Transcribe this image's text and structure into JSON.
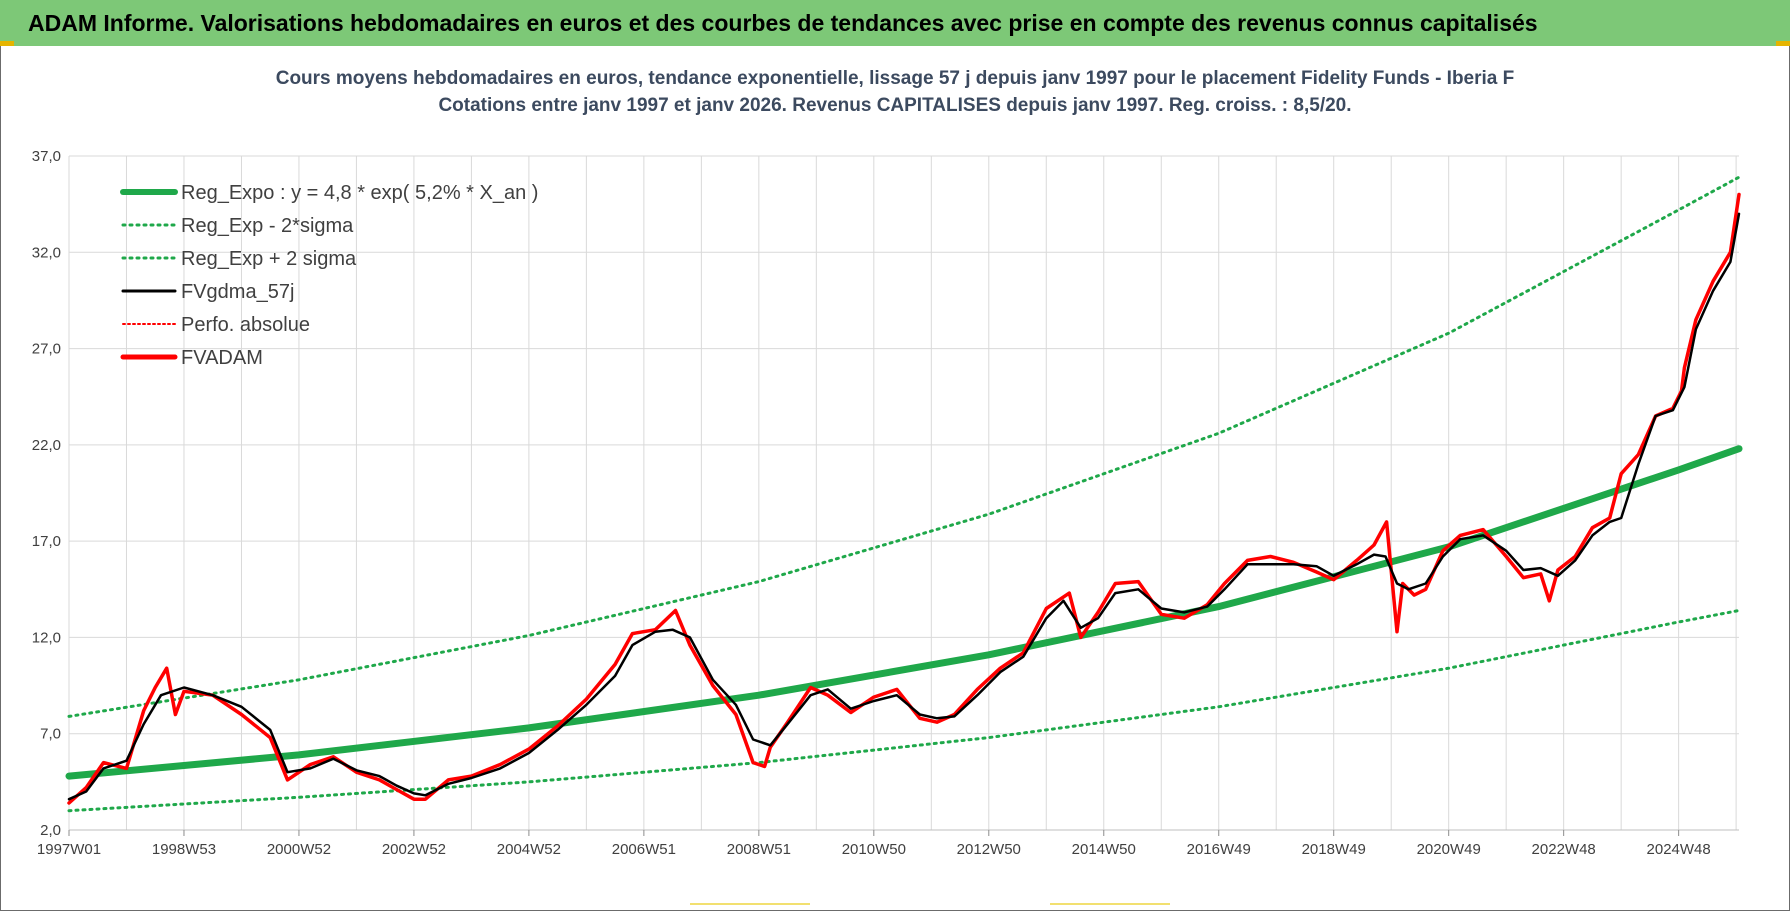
{
  "header": {
    "title": "ADAM Informe. Valorisations hebdomadaires en euros et des courbes de tendances avec prise en compte des revenus connus capitalisés"
  },
  "colors": {
    "banner_bg": "#7dc877",
    "green_series": "#1fa84a",
    "black_series": "#000000",
    "red_series": "#ff0000",
    "grid": "#d9d9d9",
    "title_text": "#3c4a5f"
  },
  "chart_data": {
    "type": "line",
    "title": "Cours moyens hebdomadaires en euros, tendance exponentielle, lissage 57 j depuis janv 1997  pour le  placement Fidelity Funds - Iberia F",
    "subtitle": "Cotations entre janv 1997 et janv 2026. Revenus CAPITALISES depuis janv 1997. Reg. croiss. : 8,5/20.",
    "xlabel": "",
    "ylabel": "",
    "x_range": [
      1997.0,
      2026.05
    ],
    "ylim": [
      2.0,
      37.0
    ],
    "y_ticks": [
      "2,0",
      "7,0",
      "12,0",
      "17,0",
      "22,0",
      "27,0",
      "32,0",
      "37,0"
    ],
    "x_tick_labels": [
      {
        "label": "1997W01",
        "x": 1997.0
      },
      {
        "label": "1998W53",
        "x": 1999.0
      },
      {
        "label": "2000W52",
        "x": 2001.0
      },
      {
        "label": "2002W52",
        "x": 2003.0
      },
      {
        "label": "2004W52",
        "x": 2005.0
      },
      {
        "label": "2006W51",
        "x": 2007.0
      },
      {
        "label": "2008W51",
        "x": 2009.0
      },
      {
        "label": "2010W50",
        "x": 2011.0
      },
      {
        "label": "2012W50",
        "x": 2013.0
      },
      {
        "label": "2014W50",
        "x": 2015.0
      },
      {
        "label": "2016W49",
        "x": 2017.0
      },
      {
        "label": "2018W49",
        "x": 2019.0
      },
      {
        "label": "2020W49",
        "x": 2021.0
      },
      {
        "label": "2022W48",
        "x": 2023.0
      },
      {
        "label": "2024W48",
        "x": 2025.0
      }
    ],
    "grid": true,
    "legend_position": "top-left",
    "legend": [
      {
        "label": "Reg_Expo : y = 4,8 * exp( 5,2% *  X_an )",
        "style": "solid-thick",
        "color": "#1fa84a"
      },
      {
        "label": "Reg_Exp - 2*sigma",
        "style": "dotted",
        "color": "#1fa84a"
      },
      {
        "label": "Reg_Exp + 2 sigma",
        "style": "dotted",
        "color": "#1fa84a"
      },
      {
        "label": "FVgdma_57j",
        "style": "solid",
        "color": "#000000"
      },
      {
        "label": "Perfo. absolue",
        "style": "dotted",
        "color": "#ff0000"
      },
      {
        "label": "FVADAM",
        "style": "solid-thick",
        "color": "#ff0000"
      }
    ],
    "series": [
      {
        "name": "Reg_Expo : y = 4,8 * exp( 5,2% *  X_an )",
        "x": [
          1997.0,
          2001.0,
          2005.0,
          2009.0,
          2013.0,
          2017.0,
          2021.0,
          2025.0,
          2026.05
        ],
        "values": [
          4.8,
          5.9,
          7.3,
          9.0,
          11.1,
          13.6,
          16.7,
          20.7,
          21.8
        ]
      },
      {
        "name": "Reg_Exp - 2*sigma",
        "x": [
          1997.0,
          2001.0,
          2005.0,
          2009.0,
          2013.0,
          2017.0,
          2021.0,
          2025.0,
          2026.05
        ],
        "values": [
          3.0,
          3.7,
          4.5,
          5.5,
          6.8,
          8.4,
          10.4,
          12.8,
          13.4
        ]
      },
      {
        "name": "Reg_Exp + 2 sigma",
        "x": [
          1997.0,
          2001.0,
          2005.0,
          2009.0,
          2013.0,
          2017.0,
          2021.0,
          2025.0,
          2026.05
        ],
        "values": [
          7.9,
          9.8,
          12.1,
          14.9,
          18.4,
          22.6,
          27.8,
          34.2,
          35.9
        ]
      },
      {
        "name": "FVgdma_57j",
        "x": [
          1997.0,
          1997.3,
          1997.6,
          1998.0,
          1998.3,
          1998.6,
          1999.0,
          1999.5,
          2000.0,
          2000.5,
          2000.8,
          2001.2,
          2001.6,
          2002.0,
          2002.4,
          2002.7,
          2003.0,
          2003.2,
          2003.6,
          2004.0,
          2004.5,
          2005.0,
          2005.5,
          2006.0,
          2006.5,
          2006.8,
          2007.2,
          2007.5,
          2007.8,
          2008.2,
          2008.6,
          2008.9,
          2009.2,
          2009.5,
          2009.9,
          2010.2,
          2010.6,
          2011.0,
          2011.4,
          2011.8,
          2012.1,
          2012.4,
          2012.8,
          2013.2,
          2013.6,
          2014.0,
          2014.3,
          2014.6,
          2014.9,
          2015.2,
          2015.6,
          2016.0,
          2016.4,
          2016.8,
          2017.1,
          2017.5,
          2017.9,
          2018.3,
          2018.7,
          2019.0,
          2019.4,
          2019.7,
          2019.9,
          2020.1,
          2020.3,
          2020.6,
          2020.9,
          2021.2,
          2021.6,
          2022.0,
          2022.3,
          2022.6,
          2022.9,
          2023.2,
          2023.5,
          2023.8,
          2024.0,
          2024.3,
          2024.6,
          2024.9,
          2025.1,
          2025.3,
          2025.6,
          2025.9,
          2026.05
        ],
        "values": [
          3.6,
          4.0,
          5.2,
          5.6,
          7.5,
          9.0,
          9.4,
          9.0,
          8.4,
          7.2,
          5.0,
          5.2,
          5.7,
          5.1,
          4.8,
          4.3,
          3.9,
          3.8,
          4.4,
          4.7,
          5.2,
          6.0,
          7.2,
          8.5,
          10.0,
          11.6,
          12.3,
          12.4,
          12.0,
          9.8,
          8.5,
          6.7,
          6.4,
          7.5,
          9.0,
          9.3,
          8.3,
          8.7,
          9.0,
          8.0,
          7.8,
          7.9,
          9.0,
          10.2,
          11.0,
          13.0,
          13.9,
          12.5,
          13.0,
          14.3,
          14.5,
          13.5,
          13.3,
          13.6,
          14.5,
          15.8,
          15.8,
          15.8,
          15.7,
          15.2,
          15.8,
          16.3,
          16.2,
          14.8,
          14.5,
          14.8,
          16.2,
          17.1,
          17.3,
          16.5,
          15.5,
          15.6,
          15.2,
          16.0,
          17.3,
          18.0,
          18.2,
          21.0,
          23.5,
          23.8,
          25.0,
          28.0,
          30.0,
          31.5,
          34.0
        ]
      },
      {
        "name": "FVADAM",
        "x": [
          1997.0,
          1997.3,
          1997.6,
          1998.0,
          1998.3,
          1998.5,
          1998.7,
          1998.85,
          1999.0,
          1999.5,
          2000.0,
          2000.5,
          2000.8,
          2001.2,
          2001.6,
          2002.0,
          2002.4,
          2002.7,
          2003.0,
          2003.2,
          2003.6,
          2004.0,
          2004.5,
          2005.0,
          2005.5,
          2006.0,
          2006.5,
          2006.8,
          2007.2,
          2007.55,
          2007.8,
          2008.2,
          2008.6,
          2008.9,
          2009.1,
          2009.2,
          2009.5,
          2009.9,
          2010.2,
          2010.6,
          2011.0,
          2011.4,
          2011.8,
          2012.1,
          2012.4,
          2012.8,
          2013.2,
          2013.6,
          2014.0,
          2014.4,
          2014.6,
          2014.9,
          2015.2,
          2015.6,
          2016.0,
          2016.4,
          2016.8,
          2017.1,
          2017.5,
          2017.9,
          2018.3,
          2018.7,
          2019.0,
          2019.4,
          2019.7,
          2019.92,
          2020.1,
          2020.2,
          2020.4,
          2020.6,
          2020.9,
          2021.2,
          2021.6,
          2022.0,
          2022.3,
          2022.6,
          2022.75,
          2022.9,
          2023.2,
          2023.5,
          2023.8,
          2024.0,
          2024.3,
          2024.6,
          2024.9,
          2025.05,
          2025.1,
          2025.3,
          2025.6,
          2025.9,
          2026.05
        ],
        "values": [
          3.4,
          4.2,
          5.5,
          5.2,
          8.2,
          9.4,
          10.4,
          8.0,
          9.2,
          9.0,
          8.0,
          6.8,
          4.6,
          5.4,
          5.8,
          5.0,
          4.6,
          4.1,
          3.6,
          3.6,
          4.6,
          4.8,
          5.4,
          6.2,
          7.4,
          8.8,
          10.6,
          12.2,
          12.4,
          13.4,
          11.6,
          9.5,
          8.0,
          5.5,
          5.3,
          6.3,
          7.6,
          9.4,
          9.0,
          8.1,
          8.9,
          9.3,
          7.8,
          7.6,
          8.0,
          9.3,
          10.4,
          11.2,
          13.5,
          14.3,
          12.0,
          13.3,
          14.8,
          14.9,
          13.2,
          13.0,
          13.7,
          14.8,
          16.0,
          16.2,
          15.9,
          15.4,
          15.0,
          16.0,
          16.8,
          18.0,
          12.3,
          14.8,
          14.2,
          14.5,
          16.5,
          17.3,
          17.6,
          16.2,
          15.1,
          15.3,
          13.9,
          15.5,
          16.2,
          17.7,
          18.2,
          20.5,
          21.5,
          23.5,
          23.9,
          24.8,
          26.0,
          28.5,
          30.5,
          32.0,
          35.0
        ]
      }
    ]
  }
}
